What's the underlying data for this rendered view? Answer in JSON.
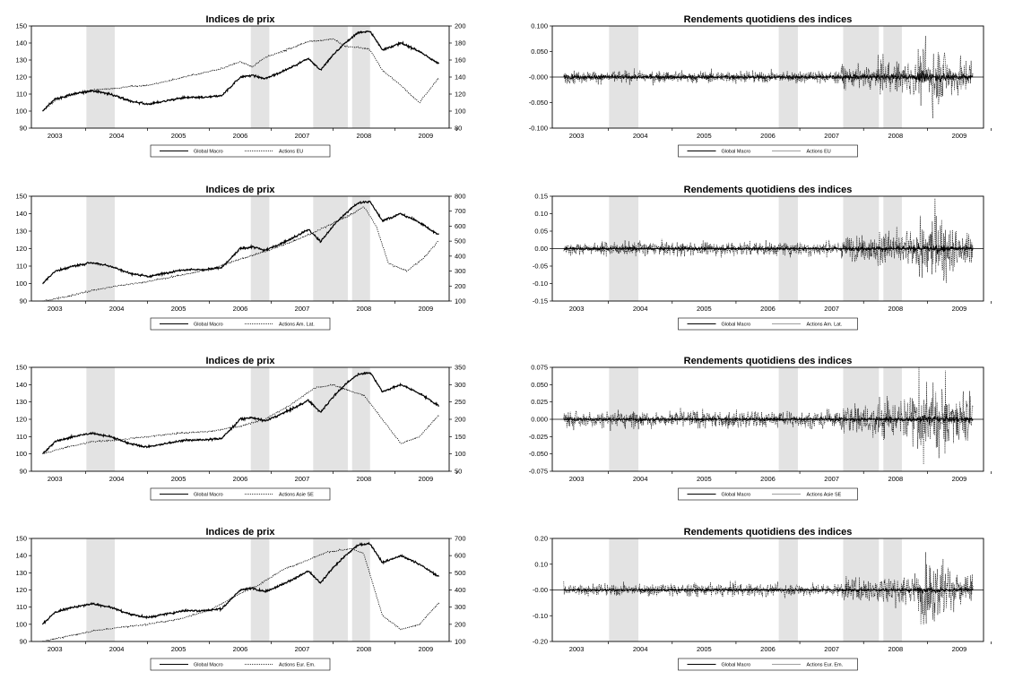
{
  "figure": {
    "panels": [
      {
        "id": "p1",
        "col": 0,
        "row": 0,
        "title": "Indices de prix",
        "type": "prices",
        "left_ticks": [
          "150",
          "140",
          "130",
          "120",
          "110",
          "100",
          "90"
        ],
        "right_ticks": [
          "200",
          "180",
          "160",
          "140",
          "120",
          "100",
          "80"
        ],
        "years": [
          "2003",
          "2004",
          "2005",
          "2006",
          "2007",
          "2008",
          "2009"
        ],
        "legend": [
          "Global Macro",
          "Actions EU"
        ]
      },
      {
        "id": "p2",
        "col": 1,
        "row": 0,
        "title": "Rendements quotidiens des indices",
        "type": "returns",
        "left_ticks": [
          "0.100",
          "0.050",
          "-0.000",
          "-0.050",
          "-0.100"
        ],
        "zero_index": 2,
        "years": [
          "2003",
          "2004",
          "2005",
          "2006",
          "2007",
          "2008",
          "2009"
        ],
        "legend": [
          "Global Macro",
          "Actions EU"
        ]
      },
      {
        "id": "p3",
        "col": 0,
        "row": 1,
        "title": "Indices de prix",
        "type": "prices",
        "left_ticks": [
          "150",
          "140",
          "130",
          "120",
          "110",
          "100",
          "90"
        ],
        "right_ticks": [
          "800",
          "700",
          "600",
          "500",
          "400",
          "300",
          "200",
          "100"
        ],
        "years": [
          "2003",
          "2004",
          "2005",
          "2006",
          "2007",
          "2008",
          "2009"
        ],
        "legend": [
          "Global Macro",
          "Actions Am. Lat."
        ]
      },
      {
        "id": "p4",
        "col": 1,
        "row": 1,
        "title": "Rendements quotidiens des indices",
        "type": "returns",
        "left_ticks": [
          "0.15",
          "0.10",
          "0.05",
          "0.00",
          "-0.05",
          "-0.10",
          "-0.15"
        ],
        "zero_index": 3,
        "years": [
          "2003",
          "2004",
          "2005",
          "2006",
          "2007",
          "2008",
          "2009"
        ],
        "legend": [
          "Global Macro",
          "Actions Am. Lat."
        ]
      },
      {
        "id": "p5",
        "col": 0,
        "row": 2,
        "title": "Indices de prix",
        "type": "prices",
        "left_ticks": [
          "150",
          "140",
          "130",
          "120",
          "110",
          "100",
          "90"
        ],
        "right_ticks": [
          "350",
          "300",
          "250",
          "200",
          "150",
          "100",
          "50"
        ],
        "years": [
          "2003",
          "2004",
          "2005",
          "2006",
          "2007",
          "2008",
          "2009"
        ],
        "legend": [
          "Global Macro",
          "Actions Asie SE"
        ]
      },
      {
        "id": "p6",
        "col": 1,
        "row": 2,
        "title": "Rendements quotidiens des indices",
        "type": "returns",
        "left_ticks": [
          "0.075",
          "0.050",
          "0.025",
          "0.000",
          "-0.025",
          "-0.050",
          "-0.075"
        ],
        "zero_index": 3,
        "years": [
          "2003",
          "2004",
          "2005",
          "2006",
          "2007",
          "2008",
          "2009"
        ],
        "legend": [
          "Global Macro",
          "Actions Asie SE"
        ]
      },
      {
        "id": "p7",
        "col": 0,
        "row": 3,
        "title": "Indices de prix",
        "type": "prices",
        "left_ticks": [
          "150",
          "140",
          "130",
          "120",
          "110",
          "100",
          "90"
        ],
        "right_ticks": [
          "700",
          "600",
          "500",
          "400",
          "300",
          "200",
          "100"
        ],
        "years": [
          "2003",
          "2004",
          "2005",
          "2006",
          "2007",
          "2008",
          "2009"
        ],
        "legend": [
          "Global Macro",
          "Actions Eur. Em."
        ]
      },
      {
        "id": "p8",
        "col": 1,
        "row": 3,
        "title": "Rendements quotidiens des indices",
        "type": "returns",
        "left_ticks": [
          "0.20",
          "0.10",
          "-0.00",
          "-0.10",
          "-0.20"
        ],
        "zero_index": 2,
        "years": [
          "2003",
          "2004",
          "2005",
          "2006",
          "2007",
          "2008",
          "2009"
        ],
        "legend": [
          "Global Macro",
          "Actions Eur. Em."
        ]
      }
    ]
  },
  "chart_data": [
    {
      "type": "line",
      "title": "Indices de prix",
      "x_years": [
        2003,
        2004,
        2005,
        2006,
        2007,
        2008,
        2009
      ],
      "y_left_range": [
        90,
        150
      ],
      "y_right_range": [
        80,
        200
      ],
      "grid": false,
      "legend_position": "bottom",
      "shaded_periods": [
        [
          2003.6,
          2004.05
        ],
        [
          2006.15,
          2006.45
        ],
        [
          2007.2,
          2007.75
        ],
        [
          2007.8,
          2008.1
        ]
      ],
      "series": [
        {
          "name": "Global Macro",
          "axis": "left",
          "style": "solid",
          "x": [
            2002.8,
            2003.0,
            2003.3,
            2003.6,
            2003.9,
            2004.2,
            2004.5,
            2004.8,
            2005.1,
            2005.4,
            2005.7,
            2006.0,
            2006.2,
            2006.4,
            2006.6,
            2006.9,
            2007.1,
            2007.3,
            2007.5,
            2007.7,
            2007.9,
            2008.1,
            2008.3,
            2008.6,
            2008.9,
            2009.2
          ],
          "y": [
            100,
            107,
            110,
            112,
            110,
            106,
            104,
            106,
            108,
            108,
            109,
            120,
            121,
            119,
            122,
            127,
            131,
            124,
            133,
            140,
            146,
            147,
            136,
            140,
            135,
            128
          ]
        },
        {
          "name": "Actions EU",
          "axis": "right",
          "style": "dotted",
          "x": [
            2002.8,
            2003.0,
            2003.3,
            2003.6,
            2003.9,
            2004.2,
            2004.5,
            2004.8,
            2005.1,
            2005.4,
            2005.7,
            2006.0,
            2006.2,
            2006.4,
            2006.6,
            2006.9,
            2007.1,
            2007.3,
            2007.5,
            2007.7,
            2007.9,
            2008.1,
            2008.3,
            2008.6,
            2008.9,
            2009.2
          ],
          "y": [
            100,
            112,
            120,
            125,
            126,
            129,
            130,
            135,
            140,
            145,
            150,
            158,
            152,
            163,
            168,
            176,
            182,
            183,
            185,
            176,
            175,
            172,
            148,
            130,
            110,
            138
          ]
        }
      ]
    },
    {
      "type": "line",
      "title": "Rendements quotidiens des indices",
      "x_years": [
        2003,
        2004,
        2005,
        2006,
        2007,
        2008,
        2009
      ],
      "y_range": [
        -0.1,
        0.1
      ],
      "legend_position": "bottom",
      "series": [
        {
          "name": "Global Macro",
          "style": "solid",
          "x": [
            2002.8,
            2004,
            2005,
            2006,
            2007,
            2007.5,
            2008,
            2008.3,
            2008.6,
            2009.2
          ],
          "amplitude": [
            0.008,
            0.007,
            0.006,
            0.007,
            0.009,
            0.012,
            0.015,
            0.02,
            0.016,
            0.01
          ]
        },
        {
          "name": "Actions EU",
          "style": "dotted",
          "x": [
            2002.8,
            2004,
            2005,
            2006,
            2007,
            2007.5,
            2008,
            2008.3,
            2008.6,
            2009.2
          ],
          "amplitude": [
            0.012,
            0.008,
            0.007,
            0.01,
            0.015,
            0.025,
            0.035,
            0.1,
            0.06,
            0.03
          ]
        }
      ]
    },
    {
      "type": "line",
      "title": "Indices de prix",
      "x_years": [
        2003,
        2004,
        2005,
        2006,
        2007,
        2008,
        2009
      ],
      "y_left_range": [
        90,
        150
      ],
      "y_right_range": [
        100,
        800
      ],
      "legend_position": "bottom",
      "series": [
        {
          "name": "Global Macro",
          "axis": "left",
          "style": "solid",
          "x": [
            2002.8,
            2003.0,
            2003.3,
            2003.6,
            2003.9,
            2004.2,
            2004.5,
            2004.8,
            2005.1,
            2005.4,
            2005.7,
            2006.0,
            2006.2,
            2006.4,
            2006.6,
            2006.9,
            2007.1,
            2007.3,
            2007.5,
            2007.7,
            2007.9,
            2008.1,
            2008.3,
            2008.6,
            2008.9,
            2009.2
          ],
          "y": [
            100,
            107,
            110,
            112,
            110,
            106,
            104,
            106,
            108,
            108,
            109,
            120,
            121,
            119,
            122,
            127,
            131,
            124,
            133,
            140,
            146,
            147,
            136,
            140,
            135,
            128
          ]
        },
        {
          "name": "Actions Am. Lat.",
          "axis": "right",
          "style": "dotted",
          "x": [
            2002.8,
            2003.2,
            2003.6,
            2004.0,
            2004.5,
            2005.0,
            2005.5,
            2006.0,
            2006.4,
            2006.8,
            2007.2,
            2007.5,
            2007.8,
            2008.0,
            2008.2,
            2008.4,
            2008.7,
            2009.0,
            2009.2
          ],
          "y": [
            100,
            130,
            170,
            200,
            230,
            270,
            310,
            380,
            430,
            490,
            560,
            620,
            680,
            730,
            600,
            350,
            300,
            400,
            500
          ]
        }
      ]
    },
    {
      "type": "line",
      "title": "Rendements quotidiens des indices",
      "y_range": [
        -0.15,
        0.15
      ],
      "legend_position": "bottom",
      "series": [
        {
          "name": "Global Macro",
          "style": "solid"
        },
        {
          "name": "Actions Am. Lat.",
          "style": "dotted"
        }
      ]
    },
    {
      "type": "line",
      "title": "Indices de prix",
      "y_left_range": [
        90,
        150
      ],
      "y_right_range": [
        50,
        350
      ],
      "legend_position": "bottom",
      "series": [
        {
          "name": "Global Macro",
          "axis": "left",
          "style": "solid"
        },
        {
          "name": "Actions Asie SE",
          "axis": "right",
          "style": "dotted",
          "x": [
            2002.8,
            2003.2,
            2003.6,
            2004.0,
            2004.5,
            2005.0,
            2005.5,
            2006.0,
            2006.4,
            2006.8,
            2007.2,
            2007.5,
            2007.8,
            2008.0,
            2008.3,
            2008.6,
            2008.9,
            2009.2
          ],
          "y": [
            100,
            120,
            135,
            140,
            150,
            160,
            165,
            180,
            200,
            240,
            290,
            300,
            280,
            270,
            200,
            130,
            150,
            210
          ]
        }
      ]
    },
    {
      "type": "line",
      "title": "Rendements quotidiens des indices",
      "y_range": [
        -0.075,
        0.075
      ],
      "legend_position": "bottom",
      "series": [
        {
          "name": "Global Macro",
          "style": "solid"
        },
        {
          "name": "Actions Asie SE",
          "style": "dotted"
        }
      ]
    },
    {
      "type": "line",
      "title": "Indices de prix",
      "y_left_range": [
        90,
        150
      ],
      "y_right_range": [
        100,
        700
      ],
      "legend_position": "bottom",
      "series": [
        {
          "name": "Global Macro",
          "axis": "left",
          "style": "solid"
        },
        {
          "name": "Actions Eur. Em.",
          "axis": "right",
          "style": "dotted",
          "x": [
            2002.8,
            2003.2,
            2003.6,
            2004.0,
            2004.5,
            2005.0,
            2005.5,
            2006.0,
            2006.3,
            2006.7,
            2007.0,
            2007.4,
            2007.8,
            2008.0,
            2008.3,
            2008.6,
            2008.9,
            2009.2
          ],
          "y": [
            100,
            130,
            160,
            180,
            200,
            230,
            280,
            380,
            430,
            520,
            560,
            620,
            640,
            610,
            250,
            170,
            200,
            320
          ]
        }
      ]
    },
    {
      "type": "line",
      "title": "Rendements quotidiens des indices",
      "y_range": [
        -0.2,
        0.2
      ],
      "legend_position": "bottom",
      "series": [
        {
          "name": "Global Macro",
          "style": "solid"
        },
        {
          "name": "Actions Eur. Em.",
          "style": "dotted"
        }
      ]
    }
  ]
}
